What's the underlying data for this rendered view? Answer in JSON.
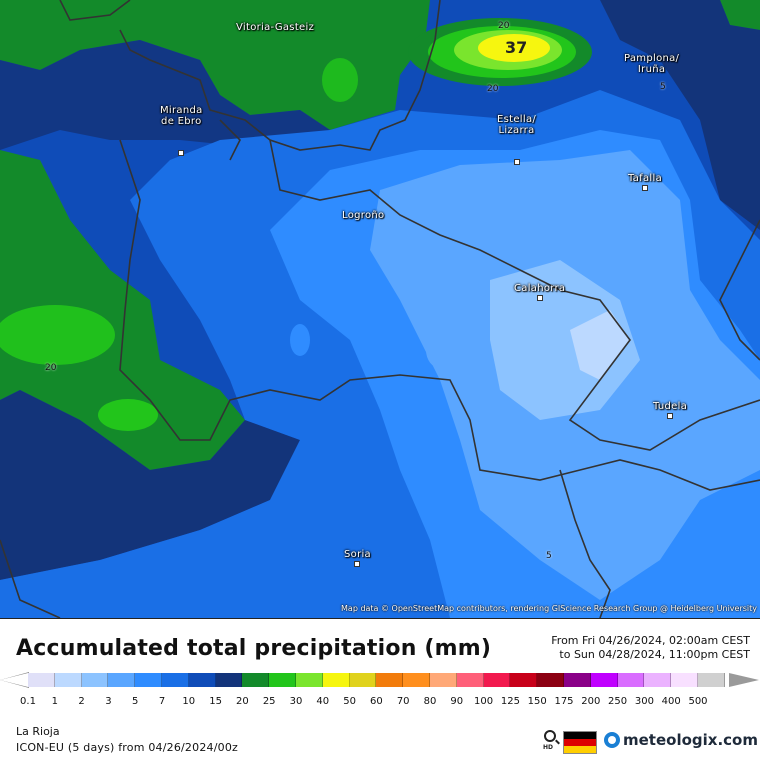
{
  "title": "Accumulated total precipitation (mm)",
  "period": {
    "from": "From Fri 04/26/2024, 02:00am CEST",
    "to": "to Sun 04/28/2024, 11:00pm CEST"
  },
  "cities": [
    {
      "name": "Vitoria-Gasteiz",
      "dot": false
    },
    {
      "name": "Pamplona/\nIruña",
      "dot": false
    },
    {
      "name": "Miranda\nde Ebro",
      "dot": true
    },
    {
      "name": "Estella/\nLizarra",
      "dot": true
    },
    {
      "name": "Tafalla",
      "dot": true
    },
    {
      "name": "Logroño",
      "dot": true
    },
    {
      "name": "Calahorra",
      "dot": true
    },
    {
      "name": "Tudela",
      "dot": true
    },
    {
      "name": "Soria",
      "dot": true
    }
  ],
  "contour_labels": [
    "20",
    "20",
    "5",
    "20",
    "5"
  ],
  "max_label": "37",
  "attribution": "Map data © OpenStreetMap contributors, rendering GIScience Research Group @ Heidelberg University",
  "legend": {
    "values": [
      "0.1",
      "1",
      "2",
      "3",
      "5",
      "7",
      "10",
      "15",
      "20",
      "25",
      "30",
      "40",
      "50",
      "60",
      "70",
      "80",
      "90",
      "100",
      "125",
      "150",
      "175",
      "200",
      "250",
      "300",
      "400",
      "500"
    ],
    "colors": [
      "#e0e0f8",
      "#bcd9ff",
      "#8cc3ff",
      "#5aa6ff",
      "#2f8cff",
      "#1a6fe6",
      "#0f4cb8",
      "#13347a",
      "#138a2a",
      "#22c51b",
      "#7ae52d",
      "#f6f60f",
      "#e0d21c",
      "#f27c0b",
      "#ff8f1e",
      "#ffa877",
      "#ff5f79",
      "#f2194e",
      "#c8001a",
      "#8c0012",
      "#8a0088",
      "#c000ff",
      "#d96cff",
      "#ebb2ff",
      "#f8e0ff",
      "#d0d0d0"
    ],
    "arrow_left_color": "#ffffff",
    "arrow_right_color": "#9a9a9a"
  },
  "region": "La Rioja",
  "model": "ICON-EU (5 days) from 04/26/2024/00z",
  "hd_label": "HD",
  "brand": "meteologix.com",
  "flag_colors": [
    "#000000",
    "#dd0000",
    "#ffce00"
  ]
}
